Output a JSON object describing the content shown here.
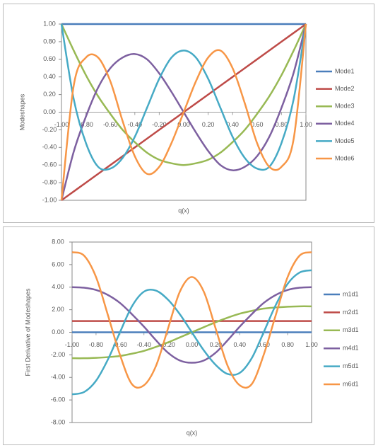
{
  "chart_data": [
    {
      "type": "line",
      "y_label": "Modeshapes",
      "x_label": "q(x)",
      "legend": "right",
      "grid": false,
      "x": [
        -1,
        -0.9,
        -0.8,
        -0.7,
        -0.6,
        -0.5,
        -0.4,
        -0.3,
        -0.2,
        -0.1,
        0,
        0.1,
        0.2,
        0.3,
        0.4,
        0.5,
        0.6,
        0.7,
        0.8,
        0.9,
        1
      ],
      "xlim": [
        -1,
        1
      ],
      "xticks": [
        {
          "value": -1,
          "label": "-1.00"
        },
        {
          "value": -0.8,
          "label": "-0.80"
        },
        {
          "value": -0.6,
          "label": "-0.60"
        },
        {
          "value": -0.4,
          "label": "-0.40"
        },
        {
          "value": -0.2,
          "label": "-0.20"
        },
        {
          "value": 0,
          "label": "0.00"
        },
        {
          "value": 0.2,
          "label": "0.20"
        },
        {
          "value": 0.4,
          "label": "0.40"
        },
        {
          "value": 0.6,
          "label": "0.60"
        },
        {
          "value": 0.8,
          "label": "0.80"
        },
        {
          "value": 1,
          "label": "1.00"
        }
      ],
      "ylim": [
        -1,
        1
      ],
      "yticks": [
        {
          "value": -1,
          "label": "-1.00"
        },
        {
          "value": -0.8,
          "label": "-0.80"
        },
        {
          "value": -0.6,
          "label": "-0.60"
        },
        {
          "value": -0.4,
          "label": "-0.40"
        },
        {
          "value": -0.2,
          "label": "-0.20"
        },
        {
          "value": 0,
          "label": "0.00"
        },
        {
          "value": 0.2,
          "label": "0.20"
        },
        {
          "value": 0.4,
          "label": "0.40"
        },
        {
          "value": 0.6,
          "label": "0.60"
        },
        {
          "value": 0.8,
          "label": "0.80"
        },
        {
          "value": 1,
          "label": "1.00"
        }
      ],
      "series": [
        {
          "name": "Mode1",
          "color": "#4a7ebb",
          "values": [
            1,
            1,
            1,
            1,
            1,
            1,
            1,
            1,
            1,
            1,
            1,
            1,
            1,
            1,
            1,
            1,
            1,
            1,
            1,
            1,
            1
          ]
        },
        {
          "name": "Mode2",
          "color": "#be4b48",
          "values": [
            -1,
            -0.9,
            -0.8,
            -0.7,
            -0.6,
            -0.5,
            -0.4,
            -0.3,
            -0.2,
            -0.1,
            0,
            0.1,
            0.2,
            0.3,
            0.4,
            0.5,
            0.6,
            0.7,
            0.8,
            0.9,
            1
          ]
        },
        {
          "name": "Mode3",
          "color": "#98b954",
          "values": [
            1,
            0.7,
            0.42,
            0.18,
            -0.02,
            -0.2,
            -0.34,
            -0.46,
            -0.54,
            -0.58,
            -0.6,
            -0.58,
            -0.54,
            -0.46,
            -0.34,
            -0.2,
            -0.02,
            0.18,
            0.42,
            0.7,
            1
          ]
        },
        {
          "name": "Mode4",
          "color": "#7d60a0",
          "values": [
            -1,
            -0.45,
            -0.05,
            0.28,
            0.5,
            0.62,
            0.66,
            0.6,
            0.44,
            0.23,
            0,
            -0.23,
            -0.44,
            -0.6,
            -0.66,
            -0.62,
            -0.5,
            -0.28,
            0.05,
            0.45,
            1
          ]
        },
        {
          "name": "Mode5",
          "color": "#46aac5",
          "values": [
            1,
            0.15,
            -0.35,
            -0.62,
            -0.64,
            -0.52,
            -0.28,
            0.05,
            0.38,
            0.62,
            0.7,
            0.62,
            0.38,
            0.05,
            -0.28,
            -0.52,
            -0.64,
            -0.62,
            -0.35,
            0.15,
            1
          ]
        },
        {
          "name": "Mode6",
          "color": "#f79646",
          "values": [
            -1,
            0.3,
            0.62,
            0.62,
            0.35,
            -0.1,
            -0.5,
            -0.7,
            -0.62,
            -0.35,
            0,
            0.35,
            0.62,
            0.7,
            0.5,
            0.1,
            -0.35,
            -0.62,
            -0.62,
            -0.3,
            1
          ]
        }
      ]
    },
    {
      "type": "line",
      "y_label": "First Derivative of Modeshapes",
      "x_label": "q(x)",
      "legend": "right",
      "grid": false,
      "x": [
        -1,
        -0.9,
        -0.8,
        -0.7,
        -0.6,
        -0.5,
        -0.4,
        -0.3,
        -0.2,
        -0.1,
        0,
        0.1,
        0.2,
        0.3,
        0.4,
        0.5,
        0.6,
        0.7,
        0.8,
        0.9,
        1
      ],
      "xlim": [
        -1,
        1
      ],
      "xticks": [
        {
          "value": -1,
          "label": "-1.00"
        },
        {
          "value": -0.8,
          "label": "-0.80"
        },
        {
          "value": -0.6,
          "label": "-0.60"
        },
        {
          "value": -0.4,
          "label": "-0.40"
        },
        {
          "value": -0.2,
          "label": "-0.20"
        },
        {
          "value": 0,
          "label": "0.00"
        },
        {
          "value": 0.2,
          "label": "0.20"
        },
        {
          "value": 0.4,
          "label": "0.40"
        },
        {
          "value": 0.6,
          "label": "0.60"
        },
        {
          "value": 0.8,
          "label": "0.80"
        },
        {
          "value": 1,
          "label": "1.00"
        }
      ],
      "ylim": [
        -8,
        8
      ],
      "yticks": [
        {
          "value": -8,
          "label": "-8.00"
        },
        {
          "value": -6,
          "label": "-6.00"
        },
        {
          "value": -4,
          "label": "-4.00"
        },
        {
          "value": -2,
          "label": "-2.00"
        },
        {
          "value": 0,
          "label": "0.00"
        },
        {
          "value": 2,
          "label": "2.00"
        },
        {
          "value": 4,
          "label": "4.00"
        },
        {
          "value": 6,
          "label": "6.00"
        },
        {
          "value": 8,
          "label": "8.00"
        }
      ],
      "series": [
        {
          "name": "m1d1",
          "color": "#4a7ebb",
          "values": [
            0,
            0,
            0,
            0,
            0,
            0,
            0,
            0,
            0,
            0,
            0,
            0,
            0,
            0,
            0,
            0,
            0,
            0,
            0,
            0,
            0
          ]
        },
        {
          "name": "m2d1",
          "color": "#be4b48",
          "values": [
            1,
            1,
            1,
            1,
            1,
            1,
            1,
            1,
            1,
            1,
            1,
            1,
            1,
            1,
            1,
            1,
            1,
            1,
            1,
            1,
            1
          ]
        },
        {
          "name": "m3d1",
          "color": "#98b954",
          "values": [
            -2.3,
            -2.3,
            -2.27,
            -2.2,
            -2.1,
            -1.9,
            -1.65,
            -1.3,
            -0.9,
            -0.45,
            0,
            0.45,
            0.9,
            1.3,
            1.65,
            1.9,
            2.1,
            2.2,
            2.27,
            2.3,
            2.3
          ]
        },
        {
          "name": "m4d1",
          "color": "#7d60a0",
          "values": [
            4,
            3.95,
            3.75,
            3.3,
            2.6,
            1.6,
            0.5,
            -0.7,
            -1.8,
            -2.5,
            -2.7,
            -2.5,
            -1.8,
            -0.7,
            0.5,
            1.6,
            2.6,
            3.3,
            3.75,
            3.95,
            4
          ]
        },
        {
          "name": "m5d1",
          "color": "#46aac5",
          "values": [
            -5.5,
            -5.3,
            -4.3,
            -2.4,
            0,
            2.3,
            3.6,
            3.7,
            2.9,
            1.6,
            0,
            -1.6,
            -2.9,
            -3.7,
            -3.6,
            -2.3,
            0,
            2.4,
            4.3,
            5.3,
            5.5
          ]
        },
        {
          "name": "m6d1",
          "color": "#f79646",
          "values": [
            7.1,
            6.8,
            4.9,
            1.5,
            -2,
            -4.6,
            -4.7,
            -3,
            0.3,
            3.6,
            4.9,
            3.6,
            0.3,
            -3,
            -4.7,
            -4.6,
            -2,
            1.5,
            4.9,
            6.8,
            7.1
          ]
        }
      ]
    }
  ]
}
